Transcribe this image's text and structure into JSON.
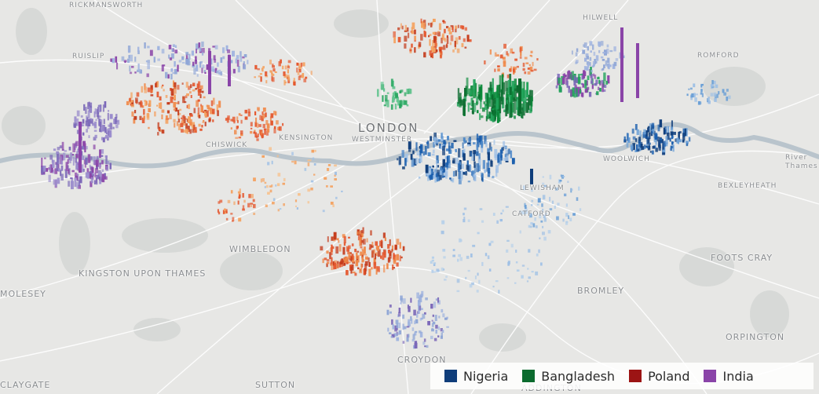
{
  "map": {
    "places": [
      {
        "key": "london",
        "name": "LONDON"
      },
      {
        "key": "westminster",
        "name": "WESTMINSTER"
      },
      {
        "key": "kensington",
        "name": "KENSINGTON"
      },
      {
        "key": "chiswick",
        "name": "CHISWICK"
      },
      {
        "key": "wimbledon",
        "name": "WIMBLEDON"
      },
      {
        "key": "kingston",
        "name": "KINGSTON UPON THAMES"
      },
      {
        "key": "molesey",
        "name": "MOLESEY"
      },
      {
        "key": "claygate",
        "name": "CLAYGATE"
      },
      {
        "key": "sutton",
        "name": "SUTTON"
      },
      {
        "key": "croydon",
        "name": "CROYDON"
      },
      {
        "key": "addington",
        "name": "ADDINGTON"
      },
      {
        "key": "bromley",
        "name": "BROMLEY"
      },
      {
        "key": "orpington",
        "name": "ORPINGTON"
      },
      {
        "key": "foots_cray",
        "name": "FOOTS CRAY"
      },
      {
        "key": "bexleyheath",
        "name": "BEXLEYHEATH"
      },
      {
        "key": "romford",
        "name": "ROMFORD"
      },
      {
        "key": "woolwich",
        "name": "WOOLWICH"
      },
      {
        "key": "lewisham",
        "name": "LEWISHAM"
      },
      {
        "key": "catford",
        "name": "CATFORD"
      },
      {
        "key": "ruislip",
        "name": "RUISLIP"
      },
      {
        "key": "rickmansworth",
        "name": "RICKMANSWORTH"
      },
      {
        "key": "hilwell",
        "name": "HILWELL"
      },
      {
        "key": "river",
        "name": "River"
      },
      {
        "key": "thames",
        "name": "Thames"
      }
    ]
  },
  "legend": {
    "items": [
      {
        "label": "Nigeria",
        "color": "#0f3d7a"
      },
      {
        "label": "Bangladesh",
        "color": "#0b6b2e"
      },
      {
        "label": "Poland",
        "color": "#9c1414"
      },
      {
        "label": "India",
        "color": "#8a44a8"
      }
    ]
  }
}
